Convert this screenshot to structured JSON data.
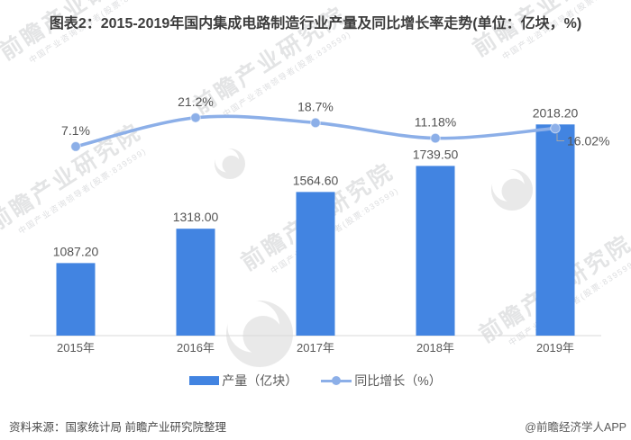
{
  "title": "图表2：2015-2019年国内集成电路制造行业产量及同比增长率走势(单位：亿块，%)",
  "chart_data": {
    "type": "bar",
    "title": "图表2：2015-2019年国内集成电路制造行业产量及同比增长率走势",
    "units": "亿块，%",
    "categories": [
      "2015年",
      "2016年",
      "2017年",
      "2018年",
      "2019年"
    ],
    "series": [
      {
        "name": "产量（亿块）",
        "type": "bar",
        "values": [
          1087.2,
          1318.0,
          1564.6,
          1739.5,
          2018.2
        ],
        "labels": [
          "1087.20",
          "1318.00",
          "1564.60",
          "1739.50",
          "2018.20"
        ],
        "color": "#4284E1",
        "axis_range": [
          600,
          2310
        ]
      },
      {
        "name": "同比增长（%）",
        "type": "line",
        "values": [
          7.1,
          21.2,
          18.7,
          11.18,
          16.02
        ],
        "labels": [
          "7.1%",
          "21.2%",
          "18.7%",
          "11.18%",
          "16.02%"
        ],
        "color": "#8CAFE8",
        "axis_range": [
          0,
          40
        ]
      }
    ],
    "legend_position": "bottom",
    "grid": false,
    "axis_color": "#d9d9d9",
    "label_color": "#545454"
  },
  "legend": {
    "bar_label": "产量（亿块）",
    "line_label": "同比增长（%）"
  },
  "footer": {
    "source": "资料来源：国家统计局 前瞻产业研究院整理",
    "credit": "@前瞻经济学人APP"
  },
  "watermark": {
    "brand": "前瞻产业研究院",
    "tagline": "中国产业咨询领导者(股票:839599)"
  }
}
